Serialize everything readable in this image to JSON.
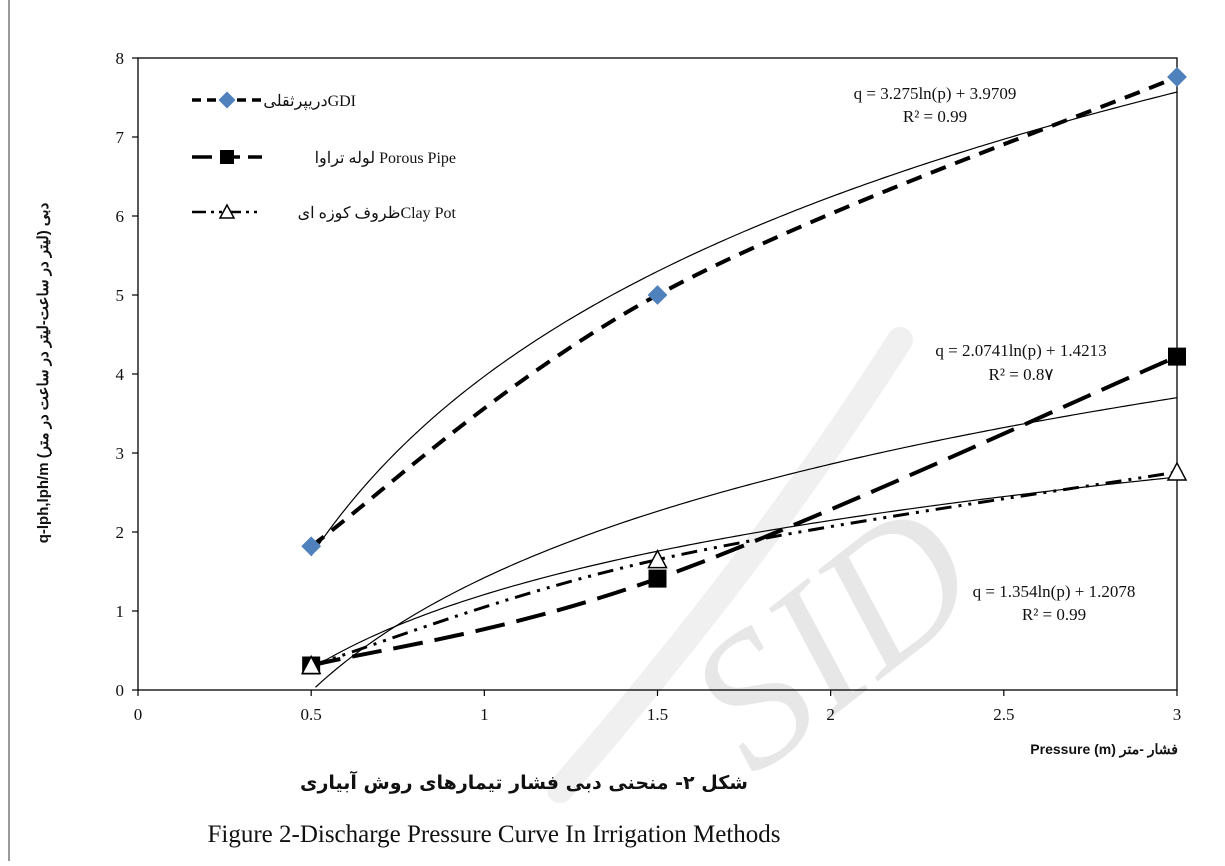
{
  "chart_data": {
    "type": "scatter",
    "ylabel": "q-lph,lph/m (لیتر در ساعت-لیتر در ساعت در متر) دبی",
    "xlabel": "Pressure (m) فشار -متر",
    "xlim": [
      0,
      3
    ],
    "ylim": [
      0,
      8
    ],
    "x_ticks": [
      "0",
      "0.5",
      "1",
      "1.5",
      "2",
      "2.5",
      "3"
    ],
    "y_ticks": [
      "0",
      "1",
      "2",
      "3",
      "4",
      "5",
      "6",
      "7",
      "8"
    ],
    "grid": false,
    "legend_position": "top-left",
    "series": [
      {
        "name": "دریپرثقلیGDI",
        "marker": "diamond",
        "line": "dash",
        "color": "#000000",
        "marker_color": "#4f81bd",
        "x": [
          0.5,
          1.5,
          3
        ],
        "y": [
          1.82,
          5.0,
          7.76
        ],
        "trendline": {
          "a": 3.275,
          "b": 3.9709
        },
        "equation": "q = 3.275ln(p) + 3.9709",
        "r2": "R² = 0.99"
      },
      {
        "name": "لوله تراوا Porous Pipe",
        "marker": "square",
        "line": "longdash",
        "color": "#000000",
        "marker_color": "#000000",
        "x": [
          0.5,
          1.5,
          3
        ],
        "y": [
          0.31,
          1.41,
          4.22
        ],
        "trendline": {
          "a": 2.0741,
          "b": 1.4213
        },
        "equation": "q = 2.0741ln(p) + 1.4213",
        "r2": "R² = 0.8۷"
      },
      {
        "name": "ظروف کوزه ایClay Pot",
        "marker": "triangle-open",
        "line": "dashdotdot",
        "color": "#000000",
        "marker_color": "#000000",
        "x": [
          0.5,
          1.5,
          3
        ],
        "y": [
          0.31,
          1.65,
          2.76
        ],
        "trendline": {
          "a": 1.354,
          "b": 1.2078
        },
        "equation": "q = 1.354ln(p) + 1.2078",
        "r2": "R² = 0.99"
      }
    ]
  },
  "caption": {
    "persian": "شکل ۲- منحنی دبی فشار تیمارهای روش آبیاری",
    "english": "Figure 2-Discharge Pressure Curve In Irrigation Methods"
  },
  "watermark": "Archive of SID"
}
